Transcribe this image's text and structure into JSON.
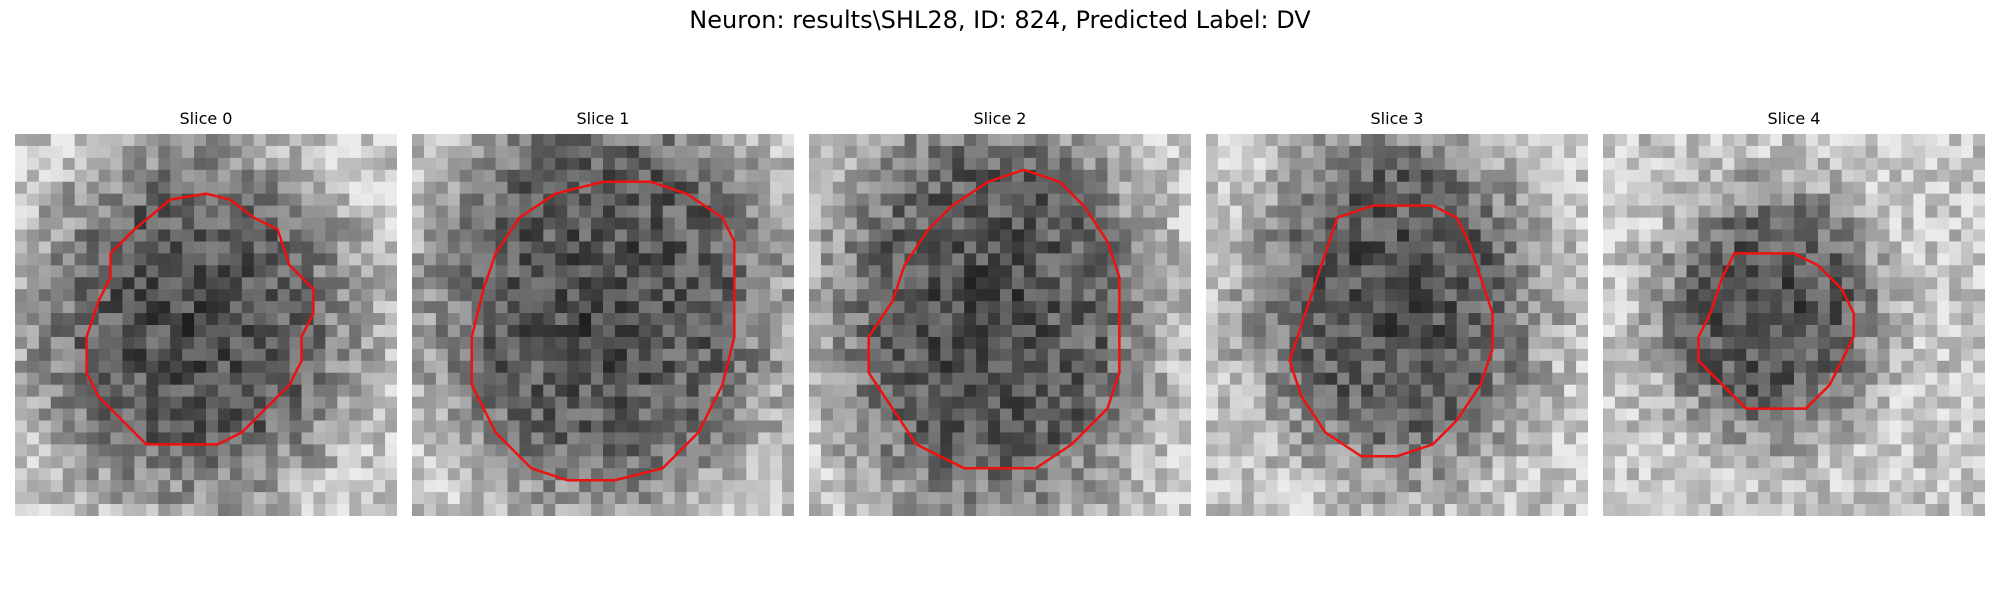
{
  "figure": {
    "title": "Neuron: results\\SHL28, ID: 824, Predicted Label: DV",
    "contour_color": "#ee1111",
    "background": "#ffffff"
  },
  "panels": [
    {
      "title": "Slice 0"
    },
    {
      "title": "Slice 1"
    },
    {
      "title": "Slice 2"
    },
    {
      "title": "Slice 3"
    },
    {
      "title": "Slice 4"
    }
  ]
}
